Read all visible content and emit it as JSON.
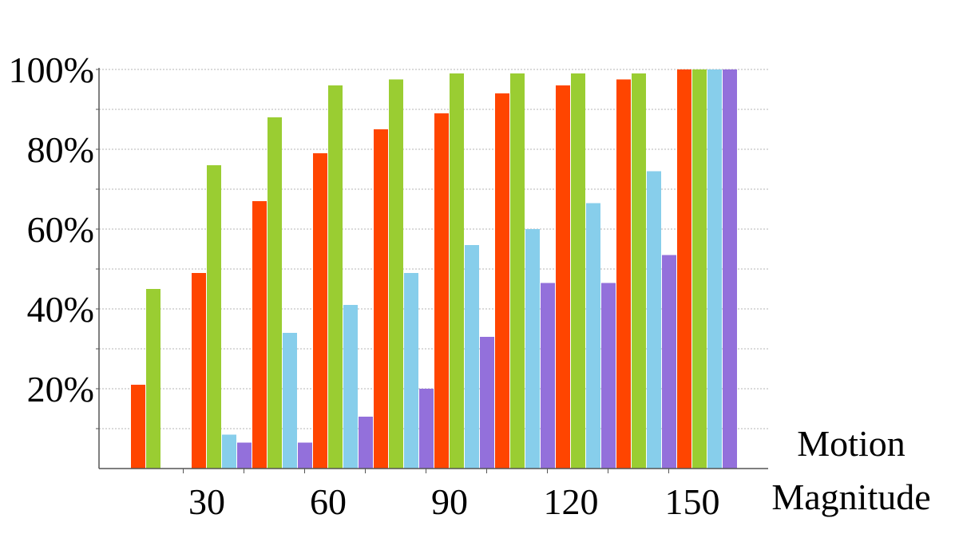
{
  "chart_data": {
    "type": "bar",
    "title": "",
    "xlabel": [
      "Motion",
      "Magnitude"
    ],
    "ylabel": "",
    "ylim": [
      0,
      100
    ],
    "y_ticks": [
      20,
      40,
      60,
      80,
      100
    ],
    "y_tick_suffix": "%",
    "x_tick_labels": [
      {
        "label": "30",
        "after_group": 1.5
      },
      {
        "label": "60",
        "after_group": 3.5
      },
      {
        "label": "90",
        "after_group": 5.5
      },
      {
        "label": "120",
        "after_group": 7.5
      },
      {
        "label": "150",
        "after_group": 9.5
      }
    ],
    "grid": true,
    "groups": 10,
    "series": [
      {
        "color": "#ff4500",
        "values": [
          21,
          49,
          67,
          79,
          85,
          89,
          94,
          96,
          97.5,
          100
        ]
      },
      {
        "color": "#9acd32",
        "values": [
          45,
          76,
          88,
          96,
          97.5,
          99,
          99,
          99,
          99,
          100
        ]
      },
      {
        "color": "#87ceeb",
        "values": [
          0,
          8.5,
          34,
          41,
          49,
          56,
          60,
          66.5,
          74.5,
          100
        ]
      },
      {
        "color": "#9370db",
        "values": [
          0,
          6.5,
          6.5,
          13,
          20,
          33,
          46.5,
          46.5,
          53.5,
          100
        ]
      }
    ]
  }
}
